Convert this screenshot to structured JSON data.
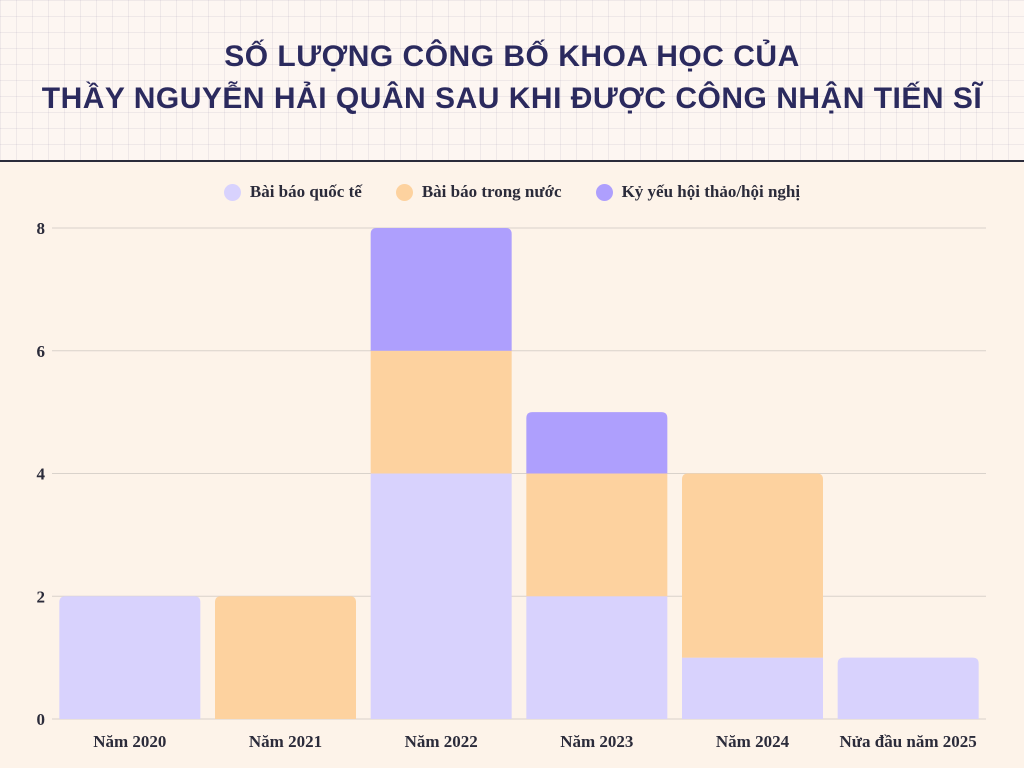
{
  "title": {
    "line1": "SỐ LƯỢNG CÔNG BỐ KHOA HỌC CỦA",
    "line2": "THẦY NGUYỄN HẢI QUÂN SAU KHI ĐƯỢC CÔNG NHẬN TIẾN SĨ"
  },
  "colors": {
    "international": "#d8d2fd",
    "domestic": "#fdd29f",
    "proceedings": "#ae9ffd"
  },
  "chart_data": {
    "type": "bar",
    "stacked": true,
    "categories": [
      "Năm 2020",
      "Năm 2021",
      "Năm 2022",
      "Năm 2023",
      "Năm 2024",
      "Nửa đầu năm 2025"
    ],
    "series": [
      {
        "name": "Bài báo quốc tế",
        "values": [
          2,
          0,
          4,
          2,
          1,
          1
        ]
      },
      {
        "name": "Bài báo trong nước",
        "values": [
          0,
          2,
          2,
          2,
          3,
          0
        ]
      },
      {
        "name": "Kỷ yếu hội thảo/hội nghị",
        "values": [
          0,
          0,
          2,
          1,
          0,
          0
        ]
      }
    ],
    "ylim": [
      0,
      8
    ],
    "yticks": [
      0,
      2,
      4,
      6,
      8
    ],
    "grid": true,
    "legend_position": "top"
  }
}
